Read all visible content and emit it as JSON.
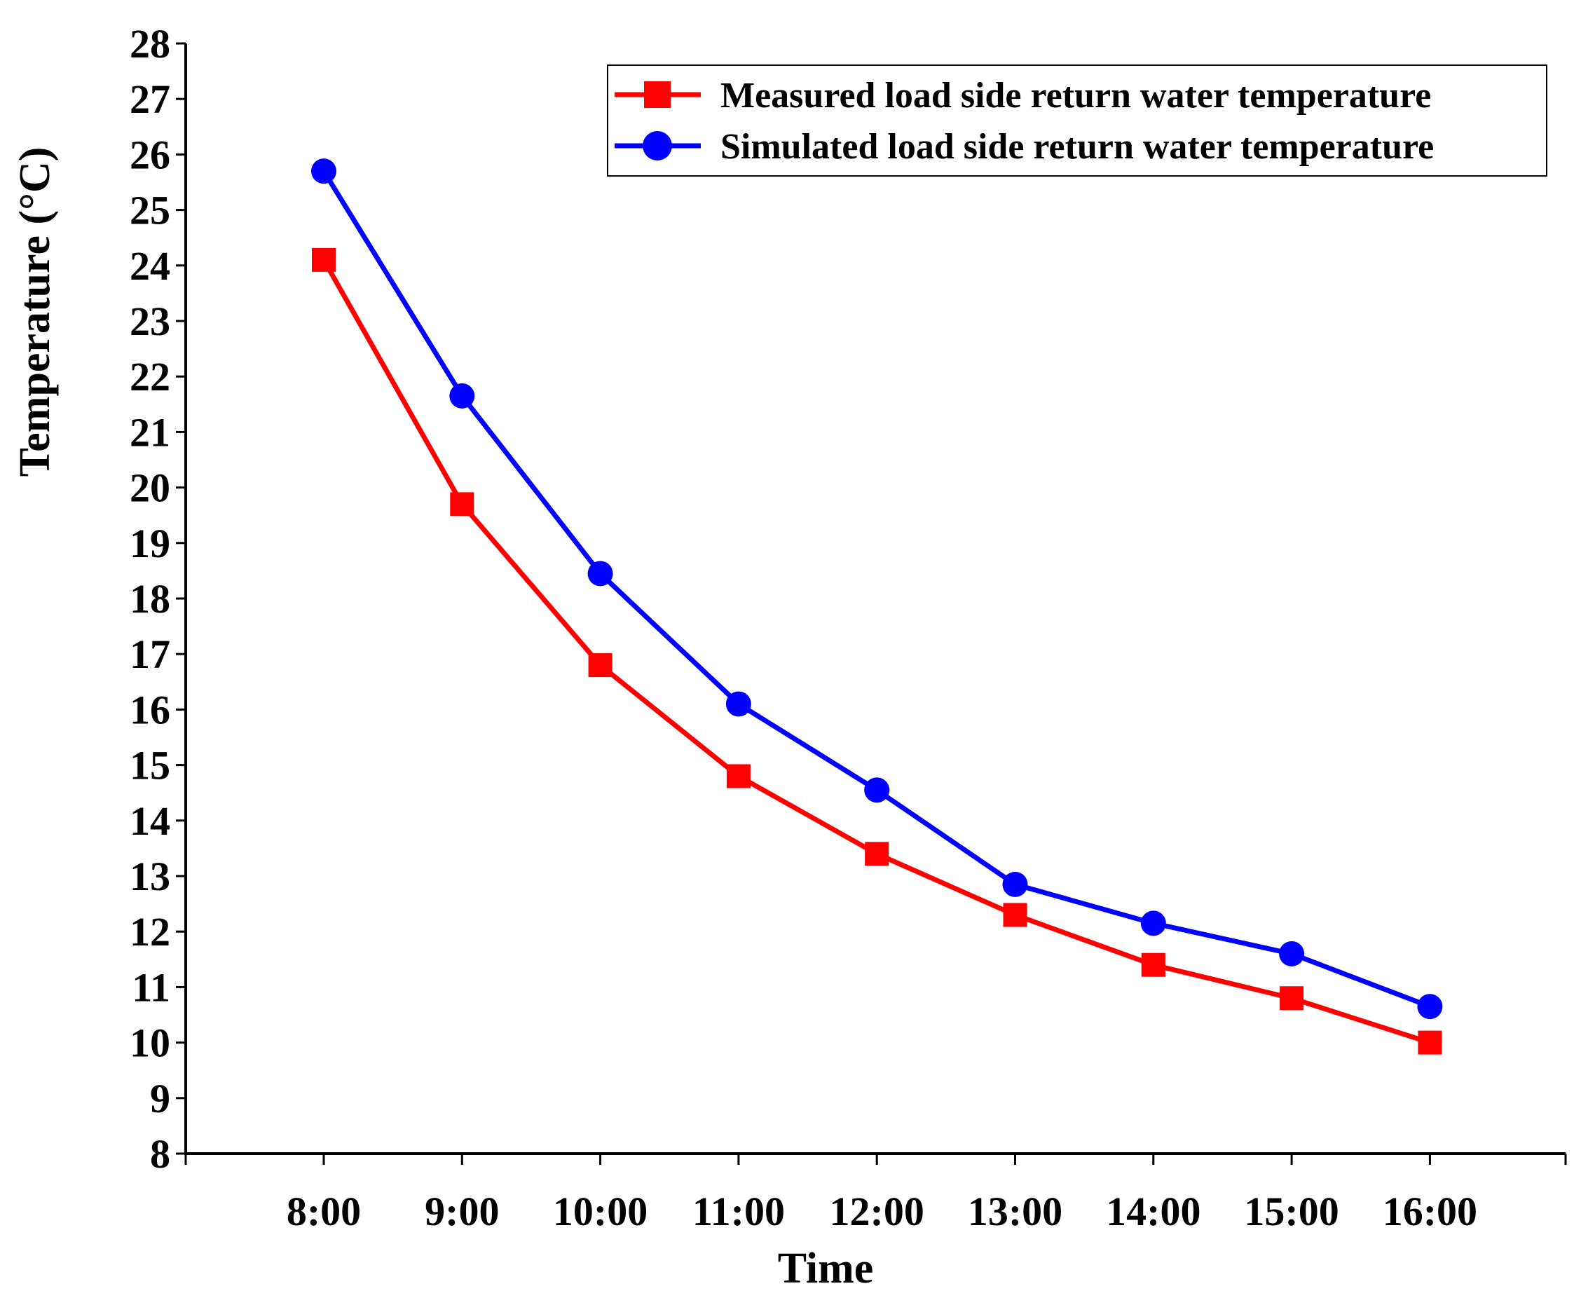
{
  "chart_data": {
    "type": "line",
    "title": "",
    "xlabel": "Time",
    "ylabel": "Temperature (°C)",
    "categories": [
      "8:00",
      "9:00",
      "10:00",
      "11:00",
      "12:00",
      "13:00",
      "14:00",
      "15:00",
      "16:00"
    ],
    "ylim": [
      8,
      28
    ],
    "yticks": [
      "8",
      "9",
      "10",
      "11",
      "12",
      "13",
      "14",
      "15",
      "16",
      "17",
      "18",
      "19",
      "20",
      "21",
      "22",
      "23",
      "24",
      "25",
      "26",
      "27",
      "28"
    ],
    "grid": false,
    "legend_position": "top-right",
    "series": [
      {
        "name": "Measured load side return water temperature",
        "color": "#ff0000",
        "marker": "square",
        "values": [
          24.1,
          19.7,
          16.8,
          14.8,
          13.4,
          12.3,
          11.4,
          10.8,
          10.0
        ]
      },
      {
        "name": "Simulated load side return water temperature",
        "color": "#0000ff",
        "marker": "circle",
        "values": [
          25.7,
          21.65,
          18.45,
          16.1,
          14.55,
          12.85,
          12.15,
          11.6,
          10.65
        ]
      }
    ]
  }
}
